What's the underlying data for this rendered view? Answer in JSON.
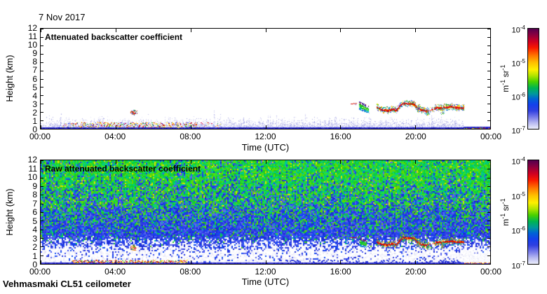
{
  "page": {
    "background": "#ffffff",
    "frame_color": "#000000"
  },
  "header": {
    "date_label": "7 Nov 2017"
  },
  "footer": {
    "instrument_label": "Vehmasmaki CL51 ceilometer"
  },
  "chart_data": [
    {
      "type": "heatmap",
      "title": "Attenuated backscatter coefficient",
      "xlabel": "Time (UTC)",
      "ylabel": "Height (km)",
      "x_tick_labels": [
        "00:00",
        "04:00",
        "08:00",
        "12:00",
        "16:00",
        "20:00",
        "00:00"
      ],
      "x_tick_hours": [
        0,
        4,
        8,
        12,
        16,
        20,
        24
      ],
      "xlim_hours": [
        0,
        24
      ],
      "y_tick_labels": [
        "0",
        "1",
        "2",
        "3",
        "4",
        "5",
        "6",
        "7",
        "8",
        "9",
        "10",
        "11",
        "12"
      ],
      "ylim_km": [
        0,
        12
      ],
      "grid": false,
      "colorbar": {
        "scale": "log",
        "range_min": "1e-7",
        "range_max": "1e-4",
        "tick_labels": [
          {
            "base": "10",
            "exp": "-4"
          },
          {
            "base": "10",
            "exp": "-5"
          },
          {
            "base": "10",
            "exp": "-6"
          },
          {
            "base": "10",
            "exp": "-7"
          }
        ],
        "unit_parts": [
          {
            "text": "m"
          },
          {
            "sup": "-1"
          },
          {
            "text": " sr"
          },
          {
            "sup": "-1"
          }
        ],
        "gradient_stops": [
          [
            "0",
            "#53004e"
          ],
          [
            "0.06",
            "#8a0040"
          ],
          [
            "0.13",
            "#d00020"
          ],
          [
            "0.19",
            "#f81800"
          ],
          [
            "0.27",
            "#ff7800"
          ],
          [
            "0.34",
            "#ffc000"
          ],
          [
            "0.41",
            "#fdf000"
          ],
          [
            "0.47",
            "#b0e400"
          ],
          [
            "0.53",
            "#48d000"
          ],
          [
            "0.59",
            "#00b450"
          ],
          [
            "0.65",
            "#00989c"
          ],
          [
            "0.7",
            "#0064d4"
          ],
          [
            "0.76",
            "#1440ec"
          ],
          [
            "0.82",
            "#3040e0"
          ],
          [
            "0.88",
            "#7478e8"
          ],
          [
            "0.94",
            "#b6b8f0"
          ],
          [
            "1",
            "#eceefb"
          ]
        ]
      },
      "features": {
        "surface_layer": {
          "end_hour": 22.55,
          "typ_top_km": 1.15,
          "colors": [
            "#cfcff2",
            "#dcdcf6",
            "#e9e9fa",
            "#bdbdee",
            "#a8a8e6"
          ]
        },
        "ground_band": {
          "top_km": 0.18,
          "colors": [
            "#2222cc",
            "#3a3ada",
            "#1616b4"
          ]
        },
        "precip_speckles": {
          "start_hour": 0.5,
          "full_start_hour": 2.1,
          "full_end_hour": 7.2,
          "end_hour": 10.4,
          "band_km": [
            0.18,
            0.8
          ],
          "colors": [
            "#e02200",
            "#ff8800",
            "#ffee00",
            "#28b828",
            "#2244ee",
            "#c80048"
          ]
        },
        "debris_blob": {
          "hour": 4.95,
          "km_range": [
            1.7,
            2.3
          ]
        },
        "cloud_dash": {
          "hour_range": [
            16.55,
            16.85
          ],
          "km": 3.05
        },
        "cloud_patch": {
          "hour_range": [
            17.0,
            17.5
          ],
          "top_km": 3.3,
          "core_colors": [
            "#16b816",
            "#00c850",
            "#50d800"
          ],
          "edge_colors": [
            "#b01020",
            "#2030c0",
            "#00b8c8",
            "#2846e0"
          ]
        },
        "cloud_base_path_hour_km": [
          [
            17.95,
            2.6
          ],
          [
            18.2,
            2.35
          ],
          [
            18.5,
            2.25
          ],
          [
            18.8,
            2.4
          ],
          [
            19.0,
            2.3
          ],
          [
            19.15,
            2.75
          ],
          [
            19.35,
            3.1
          ],
          [
            19.7,
            3.05
          ],
          [
            19.95,
            3.0
          ],
          [
            20.1,
            2.5
          ],
          [
            20.35,
            2.3
          ],
          [
            20.6,
            2.2
          ],
          [
            20.85,
            2.3
          ],
          [
            21.1,
            2.55
          ],
          [
            21.5,
            2.6
          ],
          [
            21.9,
            2.7
          ],
          [
            22.2,
            2.6
          ],
          [
            22.6,
            2.6
          ]
        ],
        "cloud_gap_hours": [
          20.72,
          21.0
        ],
        "cloud_core_colors": [
          "#dd1000",
          "#a00028",
          "#ff5500"
        ],
        "cloud_fringe_colors": [
          "#ff9900",
          "#ffee00",
          "#28b828",
          "#2840e8",
          "#8088ee",
          "#00b8b8"
        ],
        "drop_blobs": [
          {
            "hour": 20.15,
            "km_range": [
              2.0,
              3.0
            ]
          },
          {
            "hour": 20.65,
            "km_range": [
              1.65,
              2.2
            ]
          },
          {
            "hour": 21.45,
            "km_range": [
              1.8,
              2.6
            ]
          }
        ],
        "night_band": {
          "start_hour": 22.55,
          "top_km": 0.32,
          "speckle_colors": [
            "#e02000",
            "#ffdd00",
            "#ff8800",
            "#20b020"
          ]
        }
      }
    },
    {
      "type": "heatmap",
      "title": "Raw attenuated backscatter coefficient",
      "xlabel": "Time (UTC)",
      "ylabel": "Height (km)",
      "x_tick_labels": [
        "00:00",
        "04:00",
        "08:00",
        "12:00",
        "16:00",
        "20:00",
        "00:00"
      ],
      "x_tick_hours": [
        0,
        4,
        8,
        12,
        16,
        20,
        24
      ],
      "xlim_hours": [
        0,
        24
      ],
      "y_tick_labels": [
        "0",
        "1",
        "2",
        "3",
        "4",
        "5",
        "6",
        "7",
        "8",
        "9",
        "10",
        "11",
        "12"
      ],
      "ylim_km": [
        0,
        12
      ],
      "grid": false,
      "colorbar": {
        "scale": "log",
        "range_min": "1e-7",
        "range_max": "1e-4",
        "tick_labels": [
          {
            "base": "10",
            "exp": "-4"
          },
          {
            "base": "10",
            "exp": "-5"
          },
          {
            "base": "10",
            "exp": "-6"
          },
          {
            "base": "10",
            "exp": "-7"
          }
        ],
        "unit_parts": [
          {
            "text": "m"
          },
          {
            "sup": "-1"
          },
          {
            "text": " sr"
          },
          {
            "sup": "-1"
          }
        ],
        "gradient_stops": [
          [
            "0",
            "#53004e"
          ],
          [
            "0.06",
            "#8a0040"
          ],
          [
            "0.13",
            "#d00020"
          ],
          [
            "0.19",
            "#f81800"
          ],
          [
            "0.27",
            "#ff7800"
          ],
          [
            "0.34",
            "#ffc000"
          ],
          [
            "0.41",
            "#fdf000"
          ],
          [
            "0.47",
            "#b0e400"
          ],
          [
            "0.53",
            "#48d000"
          ],
          [
            "0.59",
            "#00b450"
          ],
          [
            "0.65",
            "#00989c"
          ],
          [
            "0.7",
            "#0064d4"
          ],
          [
            "0.76",
            "#1440ec"
          ],
          [
            "0.82",
            "#3040e0"
          ],
          [
            "0.88",
            "#7478e8"
          ],
          [
            "0.94",
            "#b6b8f0"
          ],
          [
            "1",
            "#eceefb"
          ]
        ]
      },
      "noise": {
        "light_colors": [
          "#ffffff",
          "#f6f6fd",
          "#ececf9",
          "#dcdcf4"
        ],
        "blue_colors": [
          "#2136e6",
          "#1a2ad2",
          "#3f51f0",
          "#3340e2",
          "#0d4bf5",
          "#5a68ee"
        ],
        "green_colors": [
          "#1fcc1f",
          "#00d158",
          "#63da00",
          "#00c795",
          "#2fe02f"
        ],
        "yellow_color": "#d8e000",
        "ground_colors": [
          "#1a1ab8",
          "#2a2ad0",
          "#3c3cde"
        ]
      },
      "features": {
        "bottom_speckles": {
          "start_hour": 1.7,
          "end_hour": 7.8,
          "band_km": [
            0.16,
            0.45
          ],
          "colors": [
            "#e02200",
            "#ff8800",
            "#ffee00",
            "#28b828",
            "#c80048"
          ]
        },
        "shelf_band": {
          "hour_range": [
            13,
            22.5
          ],
          "km_range": [
            0.15,
            0.55
          ],
          "color": "#2d3ad8"
        },
        "debris_blob": {
          "hour": 4.95,
          "km_range": [
            1.6,
            2.2
          ]
        },
        "cloud_dash": {
          "hour_range": [
            16.55,
            16.85
          ],
          "km": 3.1
        },
        "cloud_patch": {
          "hour_range": [
            17.05,
            17.4
          ],
          "top_km": 3.05,
          "core_colors": [
            "#16b816",
            "#00c850",
            "#50d800"
          ],
          "edge_colors": [
            "#b01020",
            "#2030c0",
            "#00b8c8",
            "#2846e0"
          ]
        },
        "cloud_base_path_hour_km": [
          [
            17.95,
            2.6
          ],
          [
            18.2,
            2.35
          ],
          [
            18.5,
            2.25
          ],
          [
            18.8,
            2.4
          ],
          [
            19.0,
            2.3
          ],
          [
            19.15,
            2.75
          ],
          [
            19.35,
            3.1
          ],
          [
            19.7,
            3.05
          ],
          [
            19.95,
            3.0
          ],
          [
            20.1,
            2.5
          ],
          [
            20.35,
            2.3
          ],
          [
            20.6,
            2.2
          ],
          [
            20.85,
            2.3
          ],
          [
            21.1,
            2.55
          ],
          [
            21.5,
            2.6
          ],
          [
            21.9,
            2.7
          ],
          [
            22.2,
            2.6
          ],
          [
            22.6,
            2.6
          ]
        ],
        "cloud_gap_hours": [
          20.72,
          21.0
        ],
        "cloud_core_colors": [
          "#d81000",
          "#a00028",
          "#ff5500"
        ],
        "cloud_fringe_colors": [
          "#ffe000",
          "#ff9900",
          "#28b828",
          "#2840e8",
          "#00b8b8"
        ],
        "drop_blobs": [
          {
            "hour": 20.15,
            "km_range": [
              2.0,
              3.0
            ]
          },
          {
            "hour": 20.65,
            "km_range": [
              1.65,
              2.2
            ]
          },
          {
            "hour": 21.45,
            "km_range": [
              1.8,
              2.6
            ]
          }
        ],
        "white_block": {
          "start_hour": 22.62,
          "top_km": 1.25,
          "line_km": [
            0.04,
            0.2
          ],
          "line_colors": [
            "#e02200",
            "#ff9900",
            "#ffe000",
            "#c82800"
          ]
        }
      }
    }
  ]
}
